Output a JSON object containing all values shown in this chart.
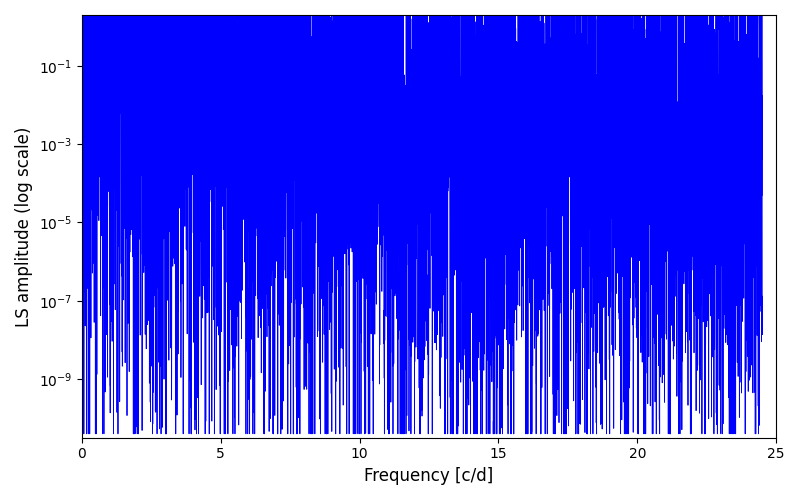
{
  "title": "",
  "xlabel": "Frequency [c/d]",
  "ylabel": "LS amplitude (log scale)",
  "line_color": "#0000FF",
  "line_width": 0.6,
  "xlim": [
    0,
    25
  ],
  "ylim_log_min": -10.5,
  "ylim_log_max": 0.3,
  "freq_max": 24.5,
  "n_points": 8000,
  "seed": 7,
  "figsize": [
    8.0,
    5.0
  ],
  "dpi": 100,
  "envelope_peak": -0.7,
  "envelope_slope": 2.0,
  "noise_scale": 3.5
}
